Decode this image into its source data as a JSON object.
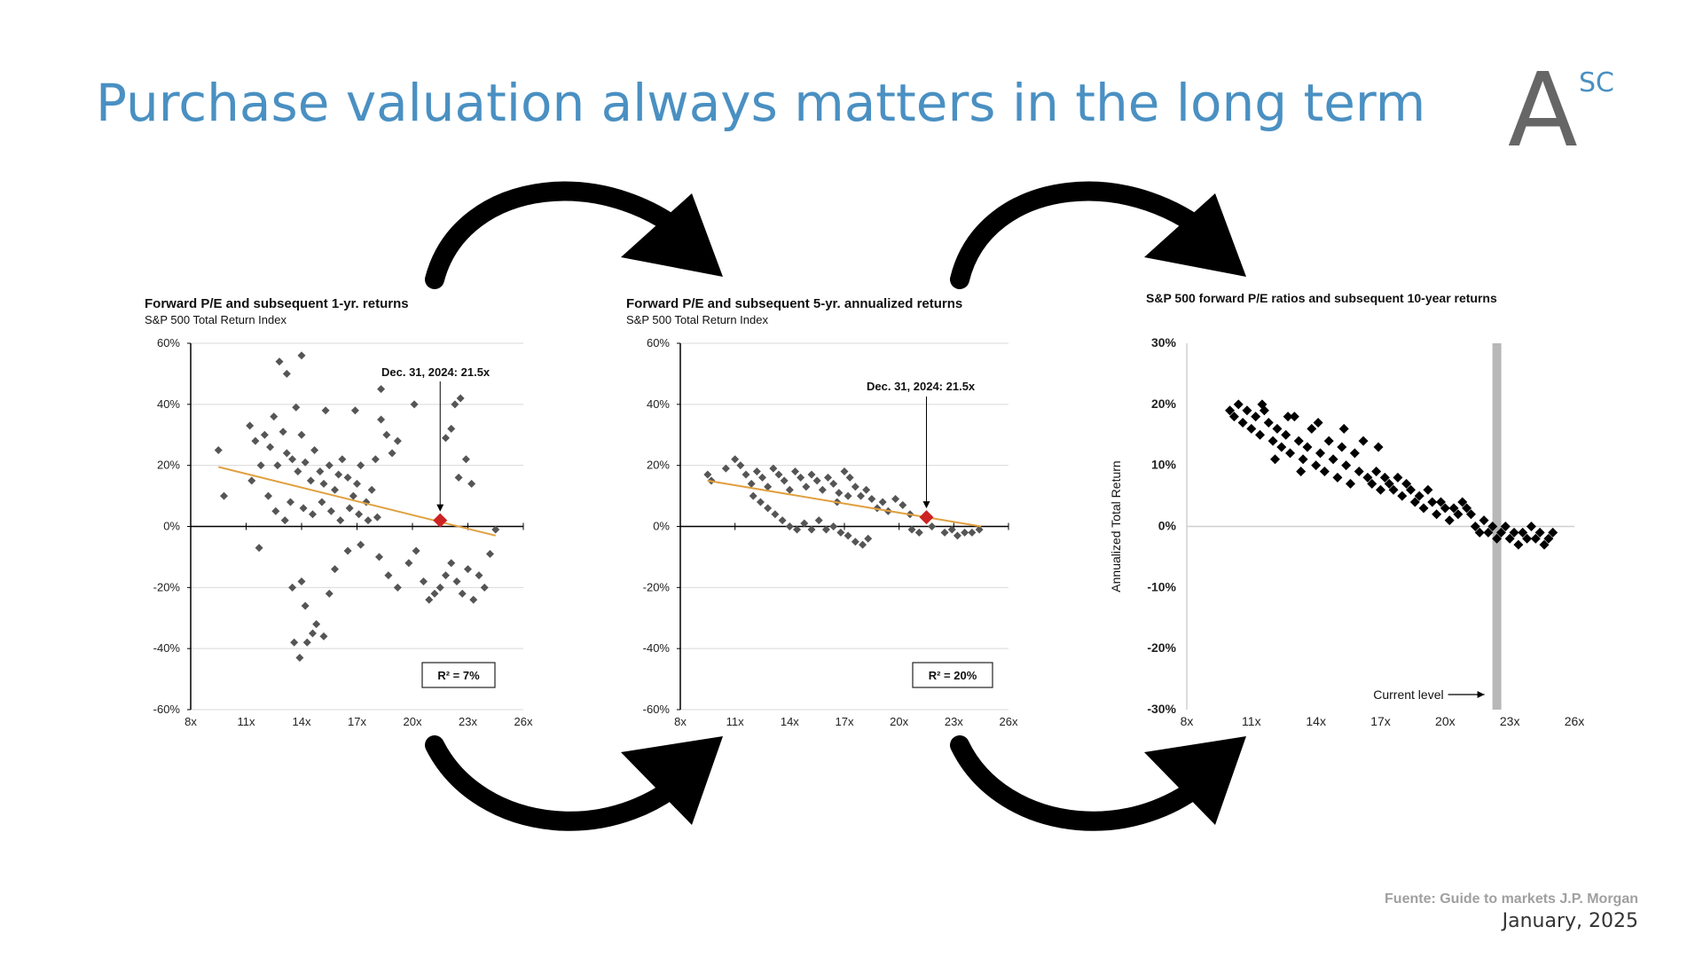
{
  "slide": {
    "title": "Purchase valuation always matters in the long term",
    "logo": {
      "letter": "A",
      "superscript": "SC"
    },
    "source": "Fuente: Guide to markets J.P. Morgan",
    "date": "January, 2025"
  },
  "colors": {
    "title": "#4a90c2",
    "points": "#555555",
    "trend": "#e0a040",
    "marker": "#cc2222",
    "arrows": "#000000"
  },
  "chart_data": [
    {
      "type": "scatter",
      "title": "Forward P/E and subsequent 1-yr. returns",
      "subtitle": "S&P 500 Total Return Index",
      "xlim": [
        8,
        26
      ],
      "ylim": [
        -60,
        60
      ],
      "xticks": [
        "8x",
        "11x",
        "14x",
        "17x",
        "20x",
        "23x",
        "26x"
      ],
      "yticks": [
        "60%",
        "40%",
        "20%",
        "0%",
        "-20%",
        "-40%",
        "-60%"
      ],
      "grid": true,
      "annotation": {
        "label": "Dec. 31, 2024: 21.5x",
        "x": 21.5,
        "y": 2
      },
      "r_squared_label": "R² = 7%",
      "trend": {
        "x": [
          9.5,
          24.5
        ],
        "y": [
          19.5,
          -3
        ]
      },
      "points": [
        [
          9.5,
          25
        ],
        [
          9.8,
          10
        ],
        [
          11.2,
          33
        ],
        [
          11.5,
          28
        ],
        [
          12,
          30
        ],
        [
          12.3,
          26
        ],
        [
          12.5,
          36
        ],
        [
          12.7,
          20
        ],
        [
          13,
          31
        ],
        [
          13.2,
          24
        ],
        [
          13.5,
          22
        ],
        [
          13.8,
          18
        ],
        [
          14,
          30
        ],
        [
          14.2,
          21
        ],
        [
          14.5,
          15
        ],
        [
          14.7,
          25
        ],
        [
          15,
          18
        ],
        [
          15.2,
          14
        ],
        [
          15.5,
          20
        ],
        [
          15.8,
          12
        ],
        [
          16,
          17
        ],
        [
          16.2,
          22
        ],
        [
          16.5,
          16
        ],
        [
          16.8,
          10
        ],
        [
          17,
          14
        ],
        [
          17.2,
          20
        ],
        [
          17.5,
          8
        ],
        [
          17.8,
          12
        ],
        [
          18,
          22
        ],
        [
          18.3,
          35
        ],
        [
          18.6,
          30
        ],
        [
          18.9,
          24
        ],
        [
          19.2,
          28
        ],
        [
          11.3,
          15
        ],
        [
          11.8,
          20
        ],
        [
          12.2,
          10
        ],
        [
          12.6,
          5
        ],
        [
          13.1,
          2
        ],
        [
          13.4,
          8
        ],
        [
          14.1,
          6
        ],
        [
          14.6,
          4
        ],
        [
          15.1,
          8
        ],
        [
          15.6,
          5
        ],
        [
          16.1,
          2
        ],
        [
          16.6,
          6
        ],
        [
          17.1,
          4
        ],
        [
          17.6,
          2
        ],
        [
          18.1,
          3
        ],
        [
          12.8,
          54
        ],
        [
          13.2,
          50
        ],
        [
          14,
          56
        ],
        [
          13.7,
          39
        ],
        [
          15.3,
          38
        ],
        [
          16.9,
          38
        ],
        [
          18.3,
          45
        ],
        [
          20.1,
          40
        ],
        [
          11.7,
          -7
        ],
        [
          13.5,
          -20
        ],
        [
          14,
          -18
        ],
        [
          14.2,
          -26
        ],
        [
          13.6,
          -38
        ],
        [
          13.9,
          -43
        ],
        [
          14.3,
          -38
        ],
        [
          14.6,
          -35
        ],
        [
          14.8,
          -32
        ],
        [
          15.2,
          -36
        ],
        [
          15.5,
          -22
        ],
        [
          15.8,
          -14
        ],
        [
          16.5,
          -8
        ],
        [
          17.2,
          -6
        ],
        [
          18.2,
          -10
        ],
        [
          18.7,
          -16
        ],
        [
          19.2,
          -20
        ],
        [
          19.8,
          -12
        ],
        [
          20.2,
          -8
        ],
        [
          20.6,
          -18
        ],
        [
          20.9,
          -24
        ],
        [
          21.2,
          -22
        ],
        [
          21.5,
          -20
        ],
        [
          21.8,
          -16
        ],
        [
          22.1,
          -12
        ],
        [
          22.4,
          -18
        ],
        [
          22.7,
          -22
        ],
        [
          23,
          -14
        ],
        [
          23.3,
          -24
        ],
        [
          23.6,
          -16
        ],
        [
          23.9,
          -20
        ],
        [
          24.2,
          -9
        ],
        [
          24.5,
          -1
        ],
        [
          21.8,
          29
        ],
        [
          22.1,
          32
        ],
        [
          22.3,
          40
        ],
        [
          22.6,
          42
        ],
        [
          22.9,
          22
        ],
        [
          22.5,
          16
        ],
        [
          23.2,
          14
        ]
      ]
    },
    {
      "type": "scatter",
      "title": "Forward P/E and subsequent 5-yr. annualized returns",
      "subtitle": "S&P 500 Total Return Index",
      "xlim": [
        8,
        26
      ],
      "ylim": [
        -60,
        60
      ],
      "xticks": [
        "8x",
        "11x",
        "14x",
        "17x",
        "20x",
        "23x",
        "26x"
      ],
      "yticks": [
        "60%",
        "40%",
        "20%",
        "0%",
        "-20%",
        "-40%",
        "-60%"
      ],
      "grid": true,
      "annotation": {
        "label": "Dec. 31, 2024: 21.5x",
        "x": 21.5,
        "y": 3
      },
      "r_squared_label": "R² = 20%",
      "trend": {
        "x": [
          9.5,
          24.5
        ],
        "y": [
          15,
          0
        ]
      },
      "points": [
        [
          9.5,
          17
        ],
        [
          9.7,
          15
        ],
        [
          10.5,
          19
        ],
        [
          11,
          22
        ],
        [
          11.3,
          20
        ],
        [
          11.6,
          17
        ],
        [
          11.9,
          14
        ],
        [
          12.2,
          18
        ],
        [
          12.5,
          16
        ],
        [
          12.8,
          13
        ],
        [
          13.1,
          19
        ],
        [
          13.4,
          17
        ],
        [
          13.7,
          15
        ],
        [
          14,
          12
        ],
        [
          14.3,
          18
        ],
        [
          14.6,
          16
        ],
        [
          14.9,
          13
        ],
        [
          15.2,
          17
        ],
        [
          15.5,
          15
        ],
        [
          15.8,
          12
        ],
        [
          16.1,
          16
        ],
        [
          16.4,
          14
        ],
        [
          16.7,
          11
        ],
        [
          17,
          18
        ],
        [
          17.3,
          16
        ],
        [
          17.6,
          13
        ],
        [
          17.9,
          10
        ],
        [
          18.2,
          12
        ],
        [
          18.5,
          9
        ],
        [
          18.8,
          6
        ],
        [
          19.1,
          8
        ],
        [
          19.4,
          5
        ],
        [
          19.8,
          9
        ],
        [
          20.2,
          7
        ],
        [
          20.6,
          4
        ],
        [
          12,
          10
        ],
        [
          12.4,
          8
        ],
        [
          12.8,
          6
        ],
        [
          13.2,
          4
        ],
        [
          13.6,
          2
        ],
        [
          14,
          0
        ],
        [
          14.4,
          -1
        ],
        [
          14.8,
          1
        ],
        [
          15.2,
          -1
        ],
        [
          15.6,
          2
        ],
        [
          16,
          -1
        ],
        [
          16.4,
          0
        ],
        [
          16.8,
          -2
        ],
        [
          17.2,
          -3
        ],
        [
          17.6,
          -5
        ],
        [
          18,
          -6
        ],
        [
          18.3,
          -4
        ],
        [
          16.6,
          8
        ],
        [
          17.2,
          10
        ],
        [
          21.8,
          0
        ],
        [
          22.5,
          -2
        ],
        [
          22.9,
          -1
        ],
        [
          23.2,
          -3
        ],
        [
          23.6,
          -2
        ],
        [
          24,
          -2
        ],
        [
          24.4,
          -1
        ],
        [
          20.7,
          -1
        ],
        [
          21.1,
          -2
        ]
      ]
    },
    {
      "type": "scatter",
      "title": "S&P 500 forward P/E ratios and subsequent 10-year returns",
      "ylabel": "Annualized Total Return",
      "xlim": [
        8,
        26
      ],
      "ylim": [
        -30,
        30
      ],
      "xticks": [
        "8x",
        "11x",
        "14x",
        "17x",
        "20x",
        "23x",
        "26x"
      ],
      "yticks": [
        "30%",
        "20%",
        "10%",
        "0%",
        "-10%",
        "-20%",
        "-30%"
      ],
      "grid": false,
      "current_level": {
        "label": "Current level",
        "x": 22.4
      },
      "points": [
        [
          10,
          19
        ],
        [
          10.2,
          18
        ],
        [
          10.4,
          20
        ],
        [
          10.6,
          17
        ],
        [
          10.8,
          19
        ],
        [
          11,
          16
        ],
        [
          11.2,
          18
        ],
        [
          11.4,
          15
        ],
        [
          11.6,
          19
        ],
        [
          11.8,
          17
        ],
        [
          12,
          14
        ],
        [
          12.2,
          16
        ],
        [
          12.4,
          13
        ],
        [
          12.6,
          15
        ],
        [
          12.8,
          12
        ],
        [
          13,
          18
        ],
        [
          13.2,
          14
        ],
        [
          13.4,
          11
        ],
        [
          13.6,
          13
        ],
        [
          13.8,
          16
        ],
        [
          14,
          10
        ],
        [
          14.2,
          12
        ],
        [
          14.4,
          9
        ],
        [
          14.6,
          14
        ],
        [
          14.8,
          11
        ],
        [
          15,
          8
        ],
        [
          15.2,
          13
        ],
        [
          15.4,
          10
        ],
        [
          15.6,
          7
        ],
        [
          15.8,
          12
        ],
        [
          16,
          9
        ],
        [
          16.2,
          14
        ],
        [
          16.4,
          8
        ],
        [
          16.6,
          7
        ],
        [
          16.8,
          9
        ],
        [
          17,
          6
        ],
        [
          17.2,
          8
        ],
        [
          17.4,
          7
        ],
        [
          17.6,
          6
        ],
        [
          17.8,
          8
        ],
        [
          18,
          5
        ],
        [
          18.2,
          7
        ],
        [
          18.4,
          6
        ],
        [
          18.6,
          4
        ],
        [
          18.8,
          5
        ],
        [
          19,
          3
        ],
        [
          19.2,
          6
        ],
        [
          19.4,
          4
        ],
        [
          19.6,
          2
        ],
        [
          19.8,
          4
        ],
        [
          20,
          3
        ],
        [
          20.2,
          1
        ],
        [
          20.4,
          3
        ],
        [
          20.6,
          2
        ],
        [
          20.8,
          4
        ],
        [
          21,
          3
        ],
        [
          21.2,
          2
        ],
        [
          21.4,
          0
        ],
        [
          21.6,
          -1
        ],
        [
          21.8,
          1
        ],
        [
          22,
          -1
        ],
        [
          22.2,
          0
        ],
        [
          22.4,
          -2
        ],
        [
          22.6,
          -1
        ],
        [
          22.8,
          0
        ],
        [
          23,
          -2
        ],
        [
          23.2,
          -1
        ],
        [
          23.4,
          -3
        ],
        [
          23.6,
          -1
        ],
        [
          23.8,
          -2
        ],
        [
          24,
          0
        ],
        [
          24.2,
          -2
        ],
        [
          24.4,
          -1
        ],
        [
          24.6,
          -3
        ],
        [
          24.8,
          -2
        ],
        [
          25,
          -1
        ],
        [
          11.5,
          20
        ],
        [
          12.7,
          18
        ],
        [
          14.1,
          17
        ],
        [
          15.3,
          16
        ],
        [
          13.3,
          9
        ],
        [
          12.1,
          11
        ],
        [
          16.9,
          13
        ]
      ]
    }
  ]
}
